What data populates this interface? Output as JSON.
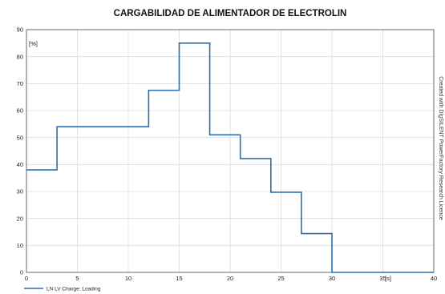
{
  "chart_data": {
    "type": "line",
    "step": true,
    "title": "CARGABILIDAD DE ALIMENTADOR DE ELECTROLIN",
    "xlabel": "[s]",
    "ylabel": "[%]",
    "xlim": [
      0,
      40
    ],
    "ylim": [
      0,
      90
    ],
    "xticks": [
      "0",
      "5",
      "10",
      "15",
      "20",
      "25",
      "30",
      "35",
      "40"
    ],
    "yticks": [
      "0",
      "10",
      "20",
      "30",
      "40",
      "50",
      "60",
      "70",
      "80",
      "90"
    ],
    "grid": true,
    "legend_position": "bottom-left",
    "series": [
      {
        "name": "LN LV Charge: Loading",
        "color": "#2a6fb0",
        "x": [
          0,
          3,
          12,
          15,
          18,
          21,
          24,
          27,
          30,
          40
        ],
        "y": [
          38,
          54,
          67.5,
          85,
          51,
          42.2,
          29.7,
          14.4,
          0,
          0
        ]
      }
    ],
    "side_note": "Created with DIgSILENT PowerFactory Research Licence"
  }
}
